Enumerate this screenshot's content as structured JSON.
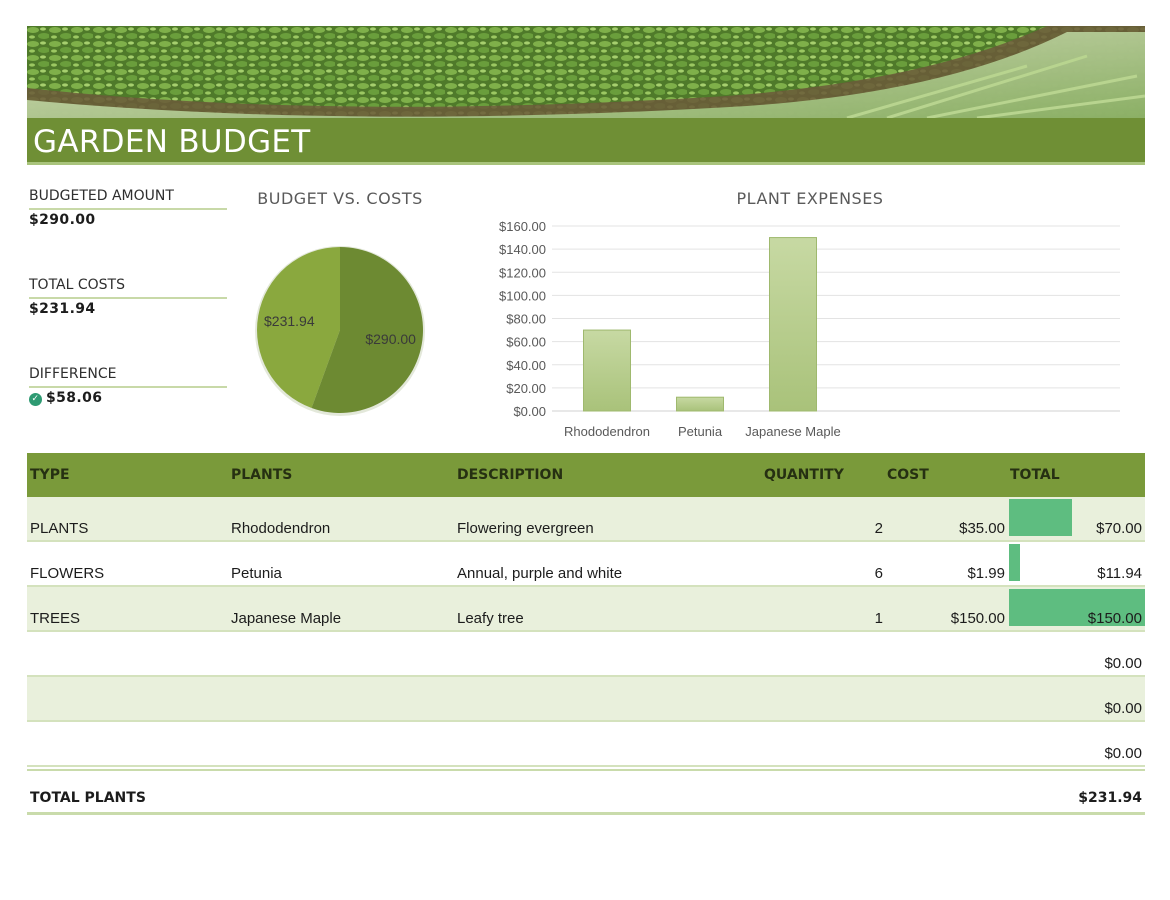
{
  "header": {
    "title": "GARDEN BUDGET"
  },
  "summary": [
    {
      "label": "BUDGETED AMOUNT",
      "value": "$290.00"
    },
    {
      "label": "TOTAL COSTS",
      "value": "$231.94"
    },
    {
      "label": "DIFFERENCE",
      "value": "$58.06",
      "icon": "check-circle-icon"
    }
  ],
  "colors": {
    "accent": "#6f8f35",
    "header_band": "#7a9a3a",
    "row_shade": "#e9f0dc",
    "databar": "#5ebd80",
    "pie_light": "#8aa83e",
    "pie_dark": "#6d8a32",
    "bar_fill": "#b5cc8a"
  },
  "chart_data": [
    {
      "type": "pie",
      "title": "BUDGET VS. COSTS",
      "labels": [
        "$231.94",
        "$290.00"
      ],
      "values": [
        231.94,
        290.0
      ],
      "colors": [
        "#8aa83e",
        "#6d8a32"
      ]
    },
    {
      "type": "bar",
      "title": "PLANT EXPENSES",
      "categories": [
        "Rhododendron",
        "Petunia",
        "Japanese Maple"
      ],
      "values": [
        70.0,
        11.94,
        150.0
      ],
      "ylim": [
        0,
        160
      ],
      "yticks": [
        "$0.00",
        "$20.00",
        "$40.00",
        "$60.00",
        "$80.00",
        "$100.00",
        "$120.00",
        "$140.00",
        "$160.00"
      ],
      "grid": true
    }
  ],
  "table": {
    "headers": [
      "TYPE",
      "PLANTS",
      "DESCRIPTION",
      "QUANTITY",
      "COST",
      "TOTAL"
    ],
    "rows": [
      {
        "type": "PLANTS",
        "plant": "Rhododendron",
        "description": "Flowering evergreen",
        "quantity": "2",
        "cost": "$35.00",
        "total": "$70.00",
        "total_value": 70.0
      },
      {
        "type": "FLOWERS",
        "plant": "Petunia",
        "description": "Annual, purple and white",
        "quantity": "6",
        "cost": "$1.99",
        "total": "$11.94",
        "total_value": 11.94
      },
      {
        "type": "TREES",
        "plant": "Japanese Maple",
        "description": "Leafy tree",
        "quantity": "1",
        "cost": "$150.00",
        "total": "$150.00",
        "total_value": 150.0
      },
      {
        "type": "",
        "plant": "",
        "description": "",
        "quantity": "",
        "cost": "",
        "total": "$0.00",
        "total_value": 0
      },
      {
        "type": "",
        "plant": "",
        "description": "",
        "quantity": "",
        "cost": "",
        "total": "$0.00",
        "total_value": 0
      },
      {
        "type": "",
        "plant": "",
        "description": "",
        "quantity": "",
        "cost": "",
        "total": "$0.00",
        "total_value": 0
      }
    ],
    "footer": {
      "label": "TOTAL PLANTS",
      "total": "$231.94"
    }
  }
}
